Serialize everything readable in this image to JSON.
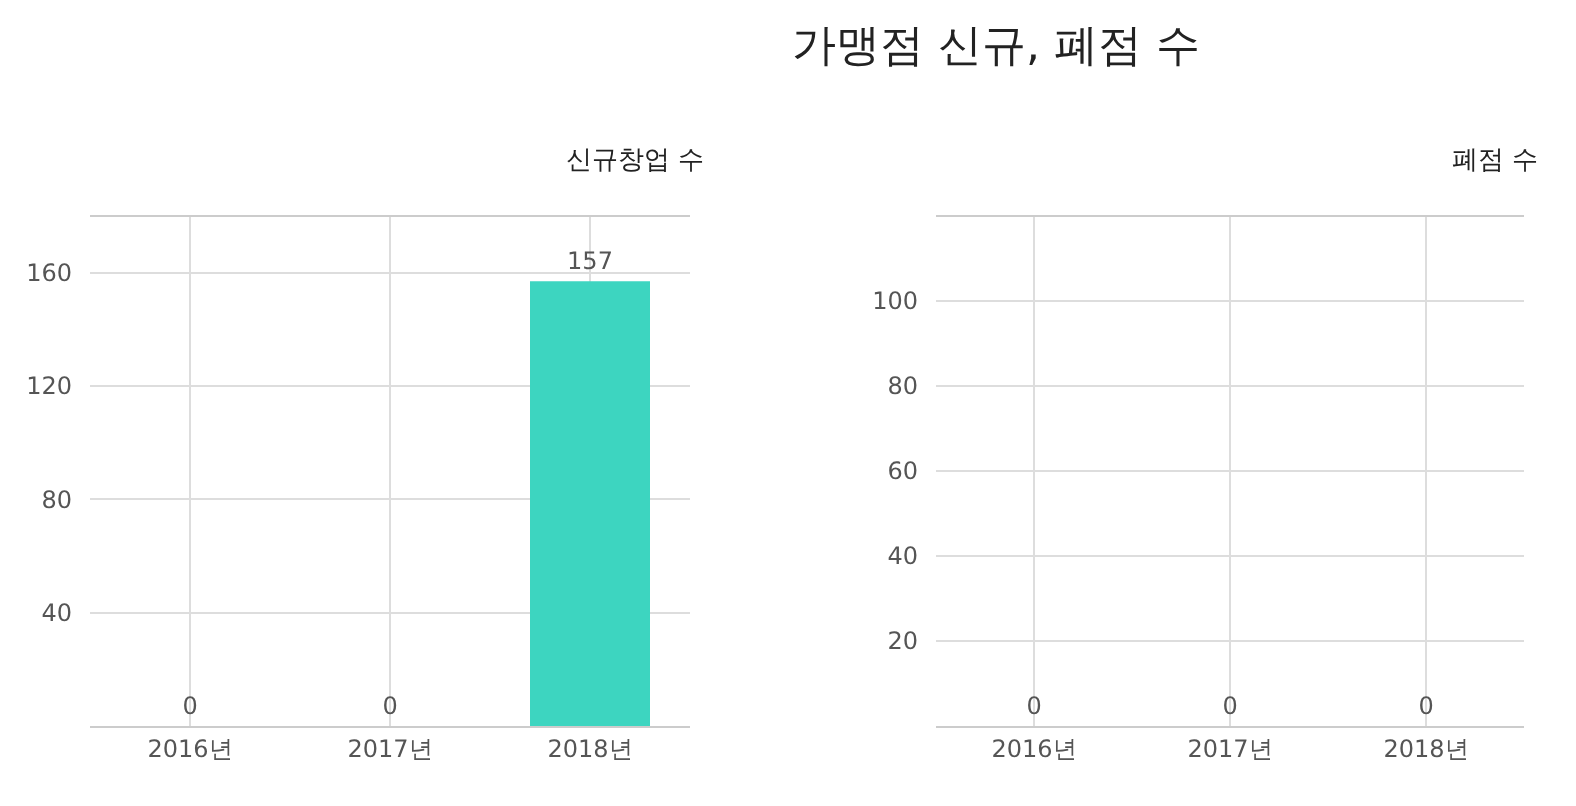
{
  "chart_data": [
    {
      "type": "bar",
      "subtitle": "신규창업 수",
      "categories": [
        "2016년",
        "2017년",
        "2018년"
      ],
      "values": [
        0,
        0,
        157
      ],
      "color": "#3dd5c0",
      "ylim": [
        0,
        180
      ],
      "yticks": [
        40,
        80,
        120,
        160
      ],
      "grid": true,
      "data_labels": true
    },
    {
      "type": "bar",
      "title": "가맹점 신규, 폐점 수",
      "subtitle": "폐점 수",
      "categories": [
        "2016년",
        "2017년",
        "2018년"
      ],
      "values": [
        0,
        0,
        0
      ],
      "color": "#3dd5c0",
      "ylim": [
        0,
        120
      ],
      "yticks": [
        20,
        40,
        60,
        80,
        100
      ],
      "grid": true,
      "data_labels": true
    }
  ]
}
